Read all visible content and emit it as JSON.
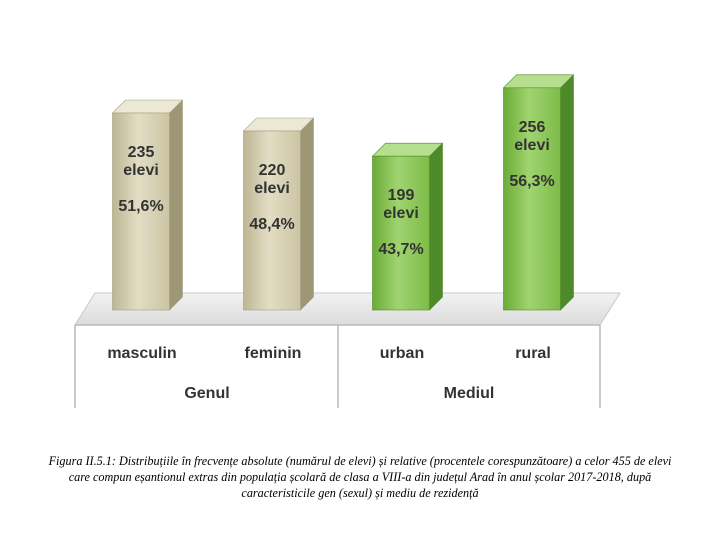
{
  "chart_data": {
    "type": "bar",
    "categories": [
      "masculin",
      "feminin",
      "urban",
      "rural"
    ],
    "groups": [
      {
        "label": "Genul",
        "categories": [
          "masculin",
          "feminin"
        ]
      },
      {
        "label": "Mediul",
        "categories": [
          "urban",
          "rural"
        ]
      }
    ],
    "values": [
      235,
      220,
      199,
      256
    ],
    "count_labels": [
      "235",
      "220",
      "199",
      "256"
    ],
    "unit_labels": [
      "elevi",
      "elevi",
      "elevi",
      "elevi"
    ],
    "percent_labels": [
      "51,6%",
      "48,4%",
      "43,7%",
      "56,3%"
    ],
    "percent_values": [
      51.6,
      48.4,
      43.7,
      56.3
    ],
    "ylim": [
      150,
      260
    ],
    "grid": false,
    "legend": "none",
    "colors": {
      "genul": "#d6d1b3",
      "mediul": "#8cc45a"
    }
  },
  "caption": "Figura II.5.1: Distribuțiile în frecvențe absolute (numărul de elevi) și relative (procentele corespunzătoare) a celor 455 de elevi care compun eșantionul extras din populația școlară de clasa a VIII-a din județul Arad în anul școlar 2017-2018, după caracteristicile gen (sexul) și mediu de rezidență"
}
